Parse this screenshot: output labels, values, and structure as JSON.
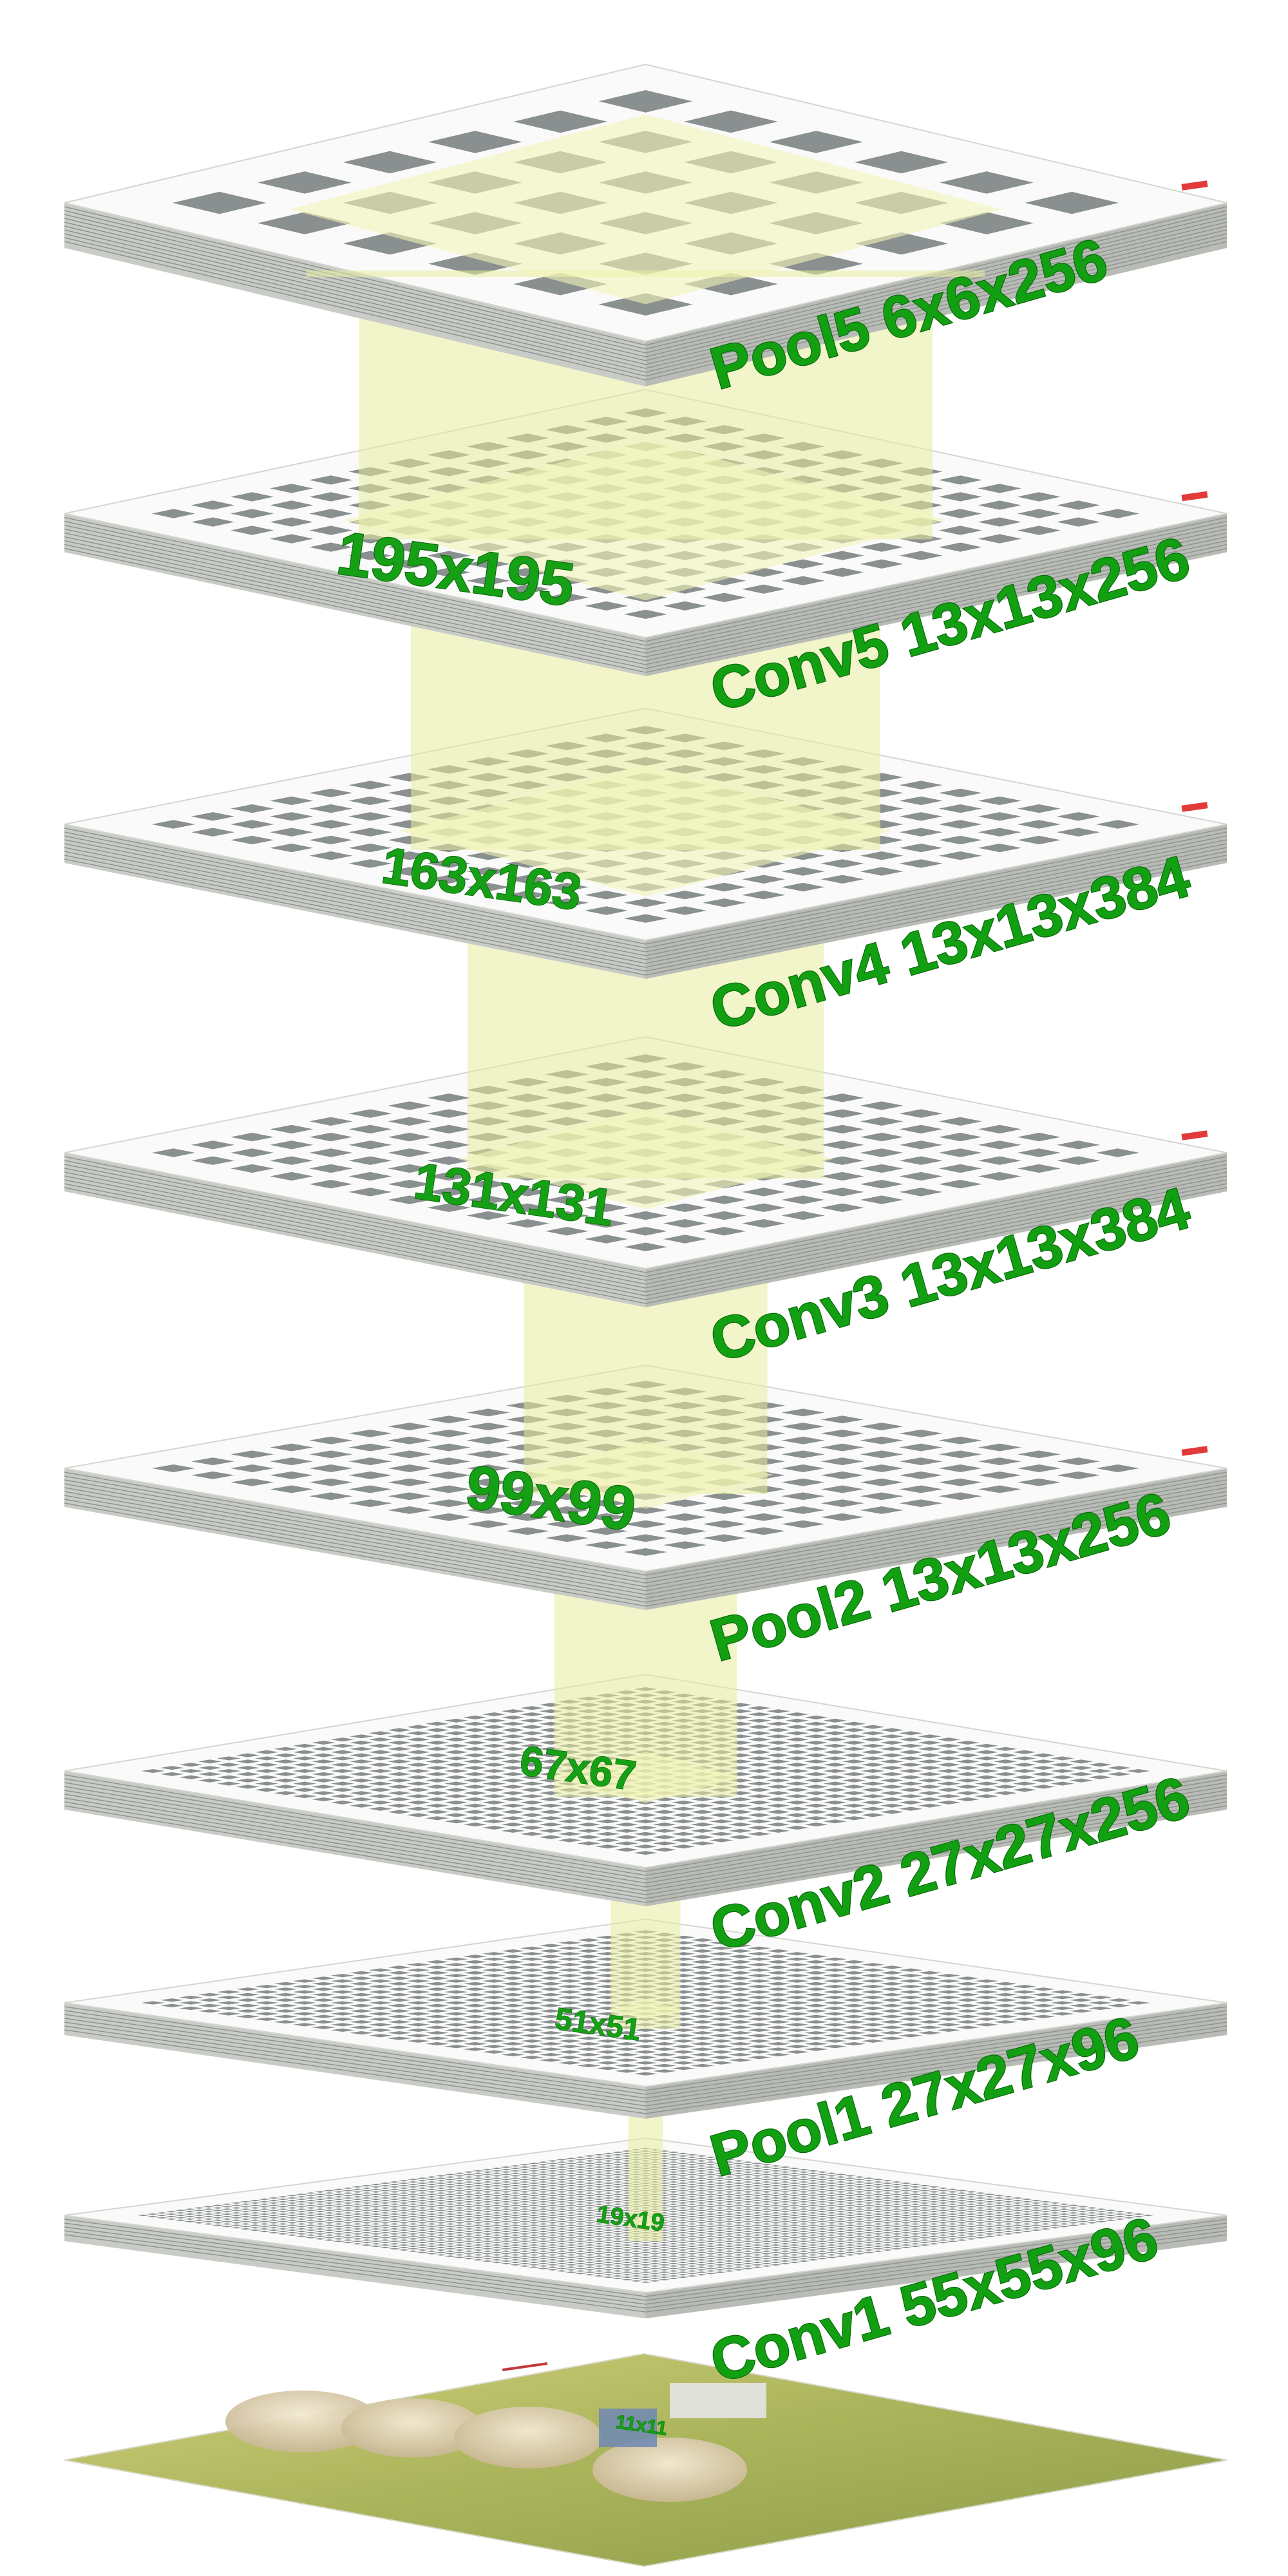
{
  "layers": [
    {
      "name": "Pool5 6x6x256",
      "grid": 6,
      "cell_color": "#8a8f8f"
    },
    {
      "name": "Conv5 13x13x256",
      "grid": 13,
      "cell_color": "#8a8f8f"
    },
    {
      "name": "Conv4 13x13x384",
      "grid": 13,
      "cell_color": "#8a8f8f"
    },
    {
      "name": "Conv3 13x13x384",
      "grid": 13,
      "cell_color": "#8a8f8f"
    },
    {
      "name": "Pool2 13x13x256",
      "grid": 13,
      "cell_color": "#8a8f8f"
    },
    {
      "name": "Conv2 27x27x256",
      "grid": 27,
      "cell_color": "#8a8f8f"
    },
    {
      "name": "Pool1 27x27x96",
      "grid": 27,
      "cell_color": "#8a8f8f"
    },
    {
      "name": "Conv1 55x55x96",
      "grid": 55,
      "cell_color": "#8a8f8f"
    }
  ],
  "receptive_fields": [
    "195x195",
    "163x163",
    "131x131",
    "99x99",
    "67x67",
    "51x51",
    "19x19",
    "11x11"
  ],
  "colors": {
    "slab_top": "#fafafa",
    "slab_side": "#c9ccc6",
    "slab_lines": "#8f948f",
    "beam_fill": "#e6ec9c",
    "label_green": "#12a012"
  },
  "input_image": {
    "description_icon": "sheep-photo-icon"
  }
}
